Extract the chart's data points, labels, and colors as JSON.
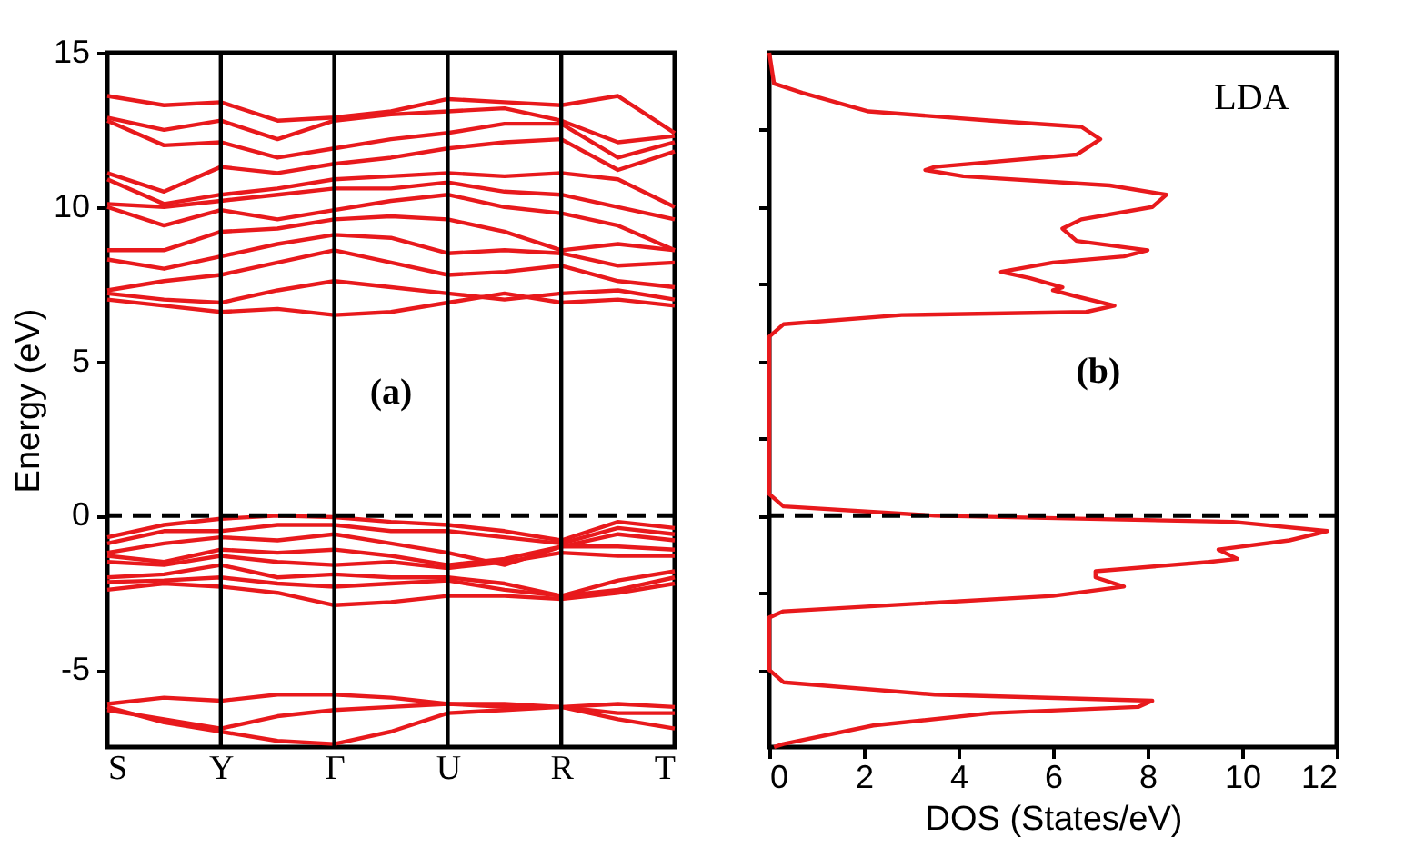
{
  "chart_data": [
    {
      "type": "line",
      "ylabel": "Energy (eV)",
      "ylim": [
        -7.5,
        15
      ],
      "categories": [
        "S",
        null,
        "Y",
        null,
        "Γ",
        null,
        "U",
        null,
        "R",
        null,
        "T"
      ],
      "yticks": [
        -5,
        0,
        5,
        10,
        15
      ],
      "line_style": "solid",
      "series": [
        {
          "color": "#e8191c",
          "values": [
            13.6,
            13.3,
            13.4,
            12.8,
            12.9,
            13.1,
            13.5,
            13.4,
            13.3,
            13.6,
            12.4
          ]
        },
        {
          "color": "#e8191c",
          "values": [
            12.9,
            12.5,
            12.8,
            12.2,
            12.8,
            13.0,
            13.1,
            13.2,
            12.8,
            12.1,
            12.3
          ]
        },
        {
          "color": "#e8191c",
          "values": [
            12.8,
            12.0,
            12.1,
            11.6,
            11.9,
            12.2,
            12.4,
            12.7,
            12.7,
            11.6,
            12.1
          ]
        },
        {
          "color": "#e8191c",
          "values": [
            11.1,
            10.5,
            11.3,
            11.1,
            11.4,
            11.6,
            11.9,
            12.1,
            12.2,
            11.2,
            11.8
          ]
        },
        {
          "color": "#e8191c",
          "values": [
            10.9,
            10.1,
            10.4,
            10.6,
            10.9,
            11.0,
            11.1,
            11.0,
            11.1,
            10.9,
            10.0
          ]
        },
        {
          "color": "#e8191c",
          "values": [
            10.1,
            10.0,
            10.2,
            10.4,
            10.6,
            10.6,
            10.8,
            10.5,
            10.4,
            10.0,
            9.6
          ]
        },
        {
          "color": "#e8191c",
          "values": [
            10.0,
            9.4,
            9.9,
            9.6,
            9.9,
            10.2,
            10.4,
            10.0,
            9.8,
            9.4,
            8.6
          ]
        },
        {
          "color": "#e8191c",
          "values": [
            8.6,
            8.6,
            9.2,
            9.3,
            9.6,
            9.7,
            9.6,
            9.2,
            8.6,
            8.8,
            8.6
          ]
        },
        {
          "color": "#e8191c",
          "values": [
            8.3,
            8.0,
            8.4,
            8.8,
            9.1,
            9.0,
            8.5,
            8.6,
            8.5,
            8.1,
            8.2
          ]
        },
        {
          "color": "#e8191c",
          "values": [
            7.3,
            7.6,
            7.8,
            8.2,
            8.6,
            8.2,
            7.8,
            7.9,
            8.1,
            7.6,
            7.4
          ]
        },
        {
          "color": "#e8191c",
          "values": [
            7.2,
            7.0,
            6.9,
            7.3,
            7.6,
            7.4,
            7.2,
            7.0,
            7.2,
            7.3,
            7.0
          ]
        },
        {
          "color": "#e8191c",
          "values": [
            7.0,
            6.8,
            6.6,
            6.7,
            6.5,
            6.6,
            6.9,
            7.2,
            6.9,
            7.0,
            6.8
          ]
        },
        {
          "color": "#e8191c",
          "values": [
            -0.7,
            -0.3,
            -0.1,
            0,
            -0.05,
            -0.2,
            -0.3,
            -0.5,
            -0.8,
            -0.2,
            -0.4
          ]
        },
        {
          "color": "#e8191c",
          "values": [
            -0.9,
            -0.5,
            -0.5,
            -0.3,
            -0.3,
            -0.5,
            -0.5,
            -0.7,
            -0.9,
            -0.4,
            -0.6
          ]
        },
        {
          "color": "#e8191c",
          "values": [
            -1.2,
            -0.9,
            -0.7,
            -0.8,
            -0.6,
            -0.9,
            -1.2,
            -1.6,
            -1.0,
            -0.6,
            -0.8
          ]
        },
        {
          "color": "#e8191c",
          "values": [
            -1.3,
            -1.5,
            -1.1,
            -1.2,
            -1.1,
            -1.3,
            -1.6,
            -1.4,
            -1.0,
            -1.0,
            -1.1
          ]
        },
        {
          "color": "#e8191c",
          "values": [
            -1.5,
            -1.6,
            -1.3,
            -1.5,
            -1.6,
            -1.5,
            -1.7,
            -1.5,
            -1.2,
            -1.3,
            -1.3
          ]
        },
        {
          "color": "#e8191c",
          "values": [
            -2.0,
            -1.9,
            -1.6,
            -2.0,
            -1.9,
            -2.0,
            -2.0,
            -2.2,
            -2.6,
            -2.1,
            -1.8
          ]
        },
        {
          "color": "#e8191c",
          "values": [
            -2.15,
            -2.1,
            -2.0,
            -2.2,
            -2.3,
            -2.2,
            -2.1,
            -2.4,
            -2.6,
            -2.4,
            -2.0
          ]
        },
        {
          "color": "#e8191c",
          "values": [
            -2.4,
            -2.2,
            -2.3,
            -2.5,
            -2.9,
            -2.8,
            -2.6,
            -2.6,
            -2.7,
            -2.5,
            -2.2
          ]
        },
        {
          "color": "#e8191c",
          "values": [
            -6.1,
            -5.9,
            -6.0,
            -5.8,
            -5.8,
            -5.9,
            -6.1,
            -6.1,
            -6.2,
            -6.1,
            -6.2
          ]
        },
        {
          "color": "#e8191c",
          "values": [
            -6.3,
            -6.6,
            -6.9,
            -6.5,
            -6.3,
            -6.2,
            -6.1,
            -6.2,
            -6.2,
            -6.4,
            -6.4
          ]
        },
        {
          "color": "#e8191c",
          "values": [
            -6.2,
            -6.7,
            -7.0,
            -7.3,
            -7.4,
            -7.0,
            -6.4,
            -6.3,
            -6.2,
            -6.6,
            -6.9
          ]
        }
      ],
      "ref_lines": [
        {
          "axis": "x",
          "value": "Y",
          "color": "#000000",
          "line_style": "solid"
        },
        {
          "axis": "x",
          "value": "Γ",
          "color": "#000000",
          "line_style": "solid"
        },
        {
          "axis": "x",
          "value": "U",
          "color": "#000000",
          "line_style": "solid"
        },
        {
          "axis": "x",
          "value": "R",
          "color": "#000000",
          "line_style": "solid"
        },
        {
          "axis": "y",
          "value": 0,
          "color": "#000000",
          "line_style": "dashed"
        }
      ],
      "annotations": [
        "(a)"
      ]
    },
    {
      "type": "line",
      "xlabel": "DOS (States/eV)",
      "xlim": [
        0,
        12
      ],
      "ylim": [
        -7.5,
        15
      ],
      "xticks": [
        0,
        2,
        4,
        6,
        8,
        10,
        12
      ],
      "yticks": [
        -5,
        -2.5,
        0,
        2.5,
        5,
        7.5,
        10,
        12.5
      ],
      "tick_labels": "x",
      "line_style": "solid",
      "series": [
        {
          "color": "#e8191c",
          "x": [
            0,
            0.1,
            0.7,
            1.4,
            2.1,
            4.7,
            6.6,
            7.0,
            6.5,
            3.5,
            3.3,
            4.1,
            7.2,
            8.4,
            8.1,
            6.6,
            6.2,
            6.5,
            8.0,
            7.5,
            6.0,
            4.9,
            5.5,
            6.2,
            6.0,
            6.5,
            7.3,
            6.7,
            2.8,
            0.3,
            0,
            0,
            0.3,
            3.5,
            9.8,
            11.8,
            11.0,
            9.5,
            9.9,
            9.3,
            6.9,
            6.9,
            7.5,
            6.0,
            0.3,
            0,
            0,
            0.3,
            3.5,
            8.1,
            7.8,
            4.7,
            2.2,
            0.3,
            0.1
          ],
          "values": [
            15.0,
            14.0,
            13.7,
            13.4,
            13.1,
            12.8,
            12.6,
            12.2,
            11.7,
            11.3,
            11.2,
            11.0,
            10.7,
            10.4,
            10.0,
            9.6,
            9.3,
            8.9,
            8.6,
            8.4,
            8.2,
            7.9,
            7.7,
            7.4,
            7.3,
            7.1,
            6.8,
            6.6,
            6.5,
            6.2,
            5.8,
            0.7,
            0.3,
            0.0,
            -0.2,
            -0.5,
            -0.8,
            -1.1,
            -1.4,
            -1.5,
            -1.8,
            -2.0,
            -2.3,
            -2.6,
            -3.1,
            -3.3,
            -5.0,
            -5.4,
            -5.8,
            -6.0,
            -6.2,
            -6.4,
            -6.8,
            -7.4,
            -7.5
          ]
        }
      ],
      "ref_lines": [
        {
          "axis": "y",
          "value": 0,
          "color": "#000000",
          "line_style": "dashed"
        }
      ],
      "annotations": [
        "LDA",
        "(b)"
      ]
    }
  ]
}
